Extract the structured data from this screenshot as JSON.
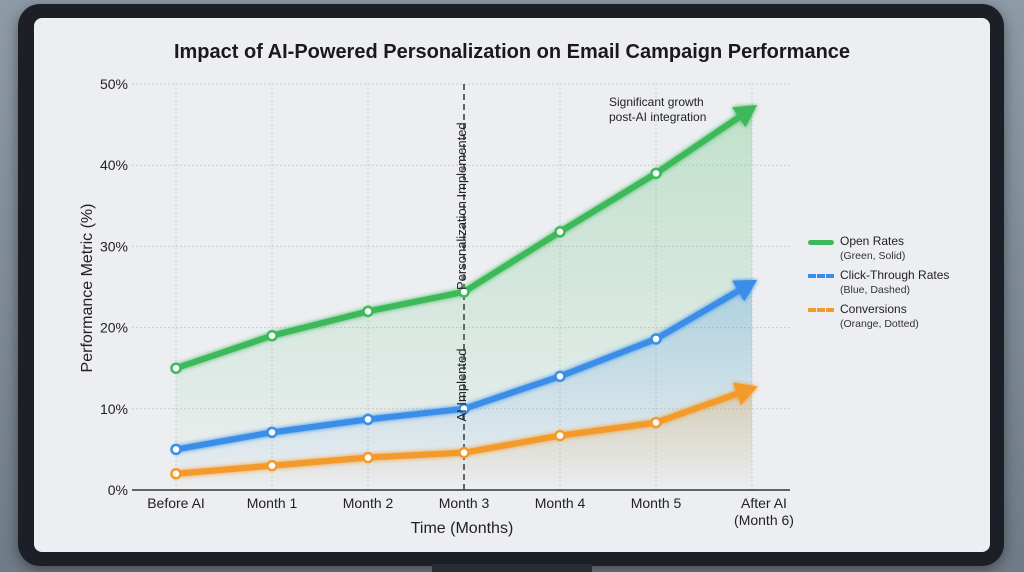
{
  "chart_data": {
    "type": "line",
    "title": "Impact of AI-Powered Personalization on Email Campaign Performance",
    "xlabel": "Time (Months)",
    "ylabel": "Performance Metric (%)",
    "categories": [
      "Before AI",
      "Month 1",
      "Month 2",
      "Month 3",
      "Month 4",
      "Month 5",
      "After AI (Month 6)"
    ],
    "ylim": [
      0,
      50
    ],
    "yticks": [
      "0%",
      "10%",
      "20%",
      "30%",
      "40%",
      "50%"
    ],
    "grid": true,
    "legend_position": "right",
    "series": [
      {
        "name": "Open Rates",
        "style": "(Green, Solid)",
        "color": "#3cb95a",
        "values": [
          15,
          19,
          22,
          24.4,
          31.8,
          39,
          47
        ]
      },
      {
        "name": "Click-Through Rates",
        "style": "(Blue, Dashed)",
        "color": "#3a8ee8",
        "values": [
          5,
          7.1,
          8.7,
          10,
          14,
          18.6,
          25.5
        ]
      },
      {
        "name": "Conversions",
        "style": "(Orange, Dotted)",
        "color": "#f39a2a",
        "values": [
          2,
          3,
          4,
          4.6,
          6.7,
          8.3,
          12.5
        ]
      }
    ],
    "annotations": {
      "vline_top": "Personalization Implemented",
      "vline_bottom": "AI Implented",
      "growth": [
        "Significant growth",
        "post-AI integration"
      ]
    }
  }
}
